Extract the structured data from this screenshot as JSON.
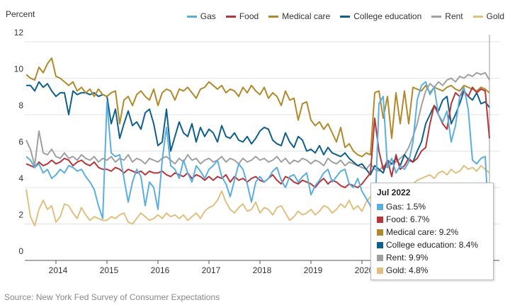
{
  "chart_data": {
    "type": "line",
    "y_axis_label": "Percent",
    "source": "Source: New York Fed Survey of Consumer Expectations",
    "categories": [
      null,
      null,
      null,
      null,
      null,
      null,
      null,
      "2014",
      null,
      null,
      null,
      null,
      null,
      null,
      null,
      null,
      null,
      null,
      null,
      "2015",
      null,
      null,
      null,
      null,
      null,
      null,
      null,
      null,
      null,
      null,
      null,
      "2016",
      null,
      null,
      null,
      null,
      null,
      null,
      null,
      null,
      null,
      null,
      null,
      "2017",
      null,
      null,
      null,
      null,
      null,
      null,
      null,
      null,
      null,
      null,
      null,
      "2018",
      null,
      null,
      null,
      null,
      null,
      null,
      null,
      null,
      null,
      null,
      null,
      "2019",
      null,
      null,
      null,
      null,
      null,
      null,
      null,
      null,
      null,
      null,
      null,
      "2020",
      null,
      null,
      null,
      null,
      null,
      null,
      null,
      null,
      null,
      null,
      null,
      "2021",
      null,
      null,
      null,
      null,
      null,
      null,
      null,
      null,
      null,
      null,
      null,
      "2022",
      null,
      null,
      null,
      null,
      null,
      null
    ],
    "ylim": [
      0,
      12
    ],
    "yticks": [
      0,
      2,
      4,
      6,
      8,
      10,
      12
    ],
    "grid": true,
    "series": [
      {
        "name": "Gas",
        "color": "#5aaee0",
        "values": [
          5.7,
          5.5,
          5.1,
          5.3,
          4.8,
          5.0,
          4.5,
          4.7,
          5.0,
          4.8,
          5.2,
          5.1,
          4.9,
          5.0,
          4.6,
          4.3,
          3.9,
          3.0,
          2.3,
          8.7,
          5.9,
          5.7,
          5.8,
          4.5,
          3.2,
          4.3,
          5.0,
          4.6,
          3.0,
          4.3,
          4.0,
          2.8,
          5.5,
          7.3,
          5.2,
          5.0,
          4.5,
          5.5,
          4.8,
          4.3,
          5.2,
          4.9,
          4.5,
          5.0,
          5.2,
          5.5,
          4.6,
          4.2,
          3.5,
          4.4,
          5.3,
          5.0,
          4.2,
          3.2,
          4.3,
          4.6,
          4.3,
          4.5,
          4.9,
          5.1,
          4.4,
          4.0,
          4.6,
          4.7,
          4.3,
          4.6,
          4.8,
          3.6,
          4.1,
          4.4,
          4.8,
          5.0,
          4.3,
          4.6,
          4.9,
          5.0,
          4.2,
          4.0,
          4.5,
          3.8,
          3.4,
          3.0,
          2.2,
          8.6,
          9.0,
          5.1,
          5.6,
          4.8,
          5.2,
          5.0,
          5.4,
          6.5,
          8.8,
          9.6,
          9.8,
          9.1,
          9.5,
          8.0,
          7.6,
          8.2,
          6.5,
          7.4,
          9.0,
          9.5,
          8.3,
          5.5,
          5.3,
          5.6,
          5.7,
          1.5
        ]
      },
      {
        "name": "Food",
        "color": "#b5363a",
        "values": [
          5.3,
          5.2,
          5.1,
          5.4,
          5.2,
          5.3,
          5.5,
          5.3,
          5.4,
          5.6,
          5.5,
          5.2,
          5.4,
          5.5,
          5.3,
          5.2,
          5.4,
          5.1,
          5.0,
          5.0,
          4.9,
          5.1,
          5.0,
          4.8,
          5.0,
          4.9,
          4.8,
          4.9,
          4.7,
          4.9,
          4.8,
          4.8,
          4.9,
          4.7,
          4.6,
          4.8,
          4.7,
          4.6,
          4.8,
          4.5,
          4.7,
          4.6,
          4.4,
          4.6,
          4.4,
          4.6,
          4.5,
          4.7,
          4.3,
          4.6,
          4.4,
          4.5,
          4.3,
          4.5,
          4.6,
          4.4,
          4.3,
          4.5,
          4.7,
          4.4,
          4.2,
          4.6,
          4.5,
          4.3,
          4.2,
          4.4,
          4.3,
          4.2,
          4.0,
          4.3,
          4.5,
          4.2,
          4.4,
          4.3,
          4.1,
          4.0,
          4.2,
          4.1,
          4.0,
          4.2,
          4.5,
          4.8,
          7.8,
          6.0,
          5.0,
          5.5,
          4.6,
          5.8,
          5.0,
          5.2,
          5.6,
          5.4,
          5.6,
          6.0,
          6.2,
          7.5,
          8.5,
          8.0,
          7.5,
          7.2,
          8.6,
          9.2,
          9.0,
          9.3,
          9.0,
          9.5,
          9.2,
          9.4,
          9.3,
          6.7
        ]
      },
      {
        "name": "Medical care",
        "color": "#b08a2a",
        "values": [
          10.2,
          10.0,
          9.9,
          10.6,
          10.3,
          10.8,
          11.1,
          10.1,
          10.0,
          9.8,
          9.6,
          9.8,
          9.3,
          9.5,
          9.2,
          9.4,
          9.0,
          9.4,
          9.1,
          9.0,
          9.2,
          9.3,
          7.5,
          8.8,
          9.0,
          8.5,
          9.1,
          9.3,
          9.0,
          8.8,
          9.4,
          8.5,
          9.2,
          9.4,
          9.3,
          8.8,
          9.4,
          9.3,
          9.5,
          9.2,
          8.9,
          9.4,
          9.5,
          9.8,
          9.6,
          9.4,
          9.6,
          9.2,
          9.4,
          9.3,
          9.0,
          9.5,
          9.2,
          9.6,
          9.3,
          9.1,
          9.5,
          8.9,
          9.2,
          9.0,
          8.5,
          9.3,
          8.8,
          8.9,
          7.7,
          8.6,
          8.7,
          7.7,
          7.4,
          7.6,
          7.2,
          7.5,
          7.0,
          6.5,
          7.3,
          6.2,
          6.4,
          6.0,
          5.8,
          5.7,
          5.9,
          5.8,
          9.2,
          9.3,
          7.8,
          9.0,
          6.7,
          9.2,
          7.5,
          9.3,
          7.5,
          9.5,
          9.4,
          9.3,
          9.6,
          9.2,
          9.5,
          9.4,
          9.3,
          9.5,
          9.6,
          9.4,
          9.3,
          9.6,
          9.5,
          9.4,
          9.3,
          9.5,
          9.4,
          9.2
        ]
      },
      {
        "name": "College education",
        "color": "#0e5f8a",
        "values": [
          9.6,
          9.6,
          9.3,
          9.8,
          9.5,
          9.7,
          9.3,
          9.0,
          9.2,
          9.2,
          8.0,
          9.3,
          9.1,
          9.2,
          9.2,
          9.1,
          9.2,
          9.0,
          9.1,
          9.0,
          7.5,
          8.3,
          6.7,
          7.5,
          8.2,
          7.4,
          7.6,
          7.2,
          8.1,
          8.3,
          7.5,
          6.3,
          6.5,
          8.3,
          6.0,
          6.8,
          7.6,
          7.0,
          6.8,
          7.5,
          6.5,
          7.3,
          6.8,
          7.2,
          7.0,
          6.5,
          7.4,
          6.8,
          6.7,
          7.0,
          6.6,
          6.5,
          6.8,
          6.4,
          6.7,
          7.1,
          7.3,
          7.2,
          6.6,
          6.4,
          6.3,
          7.0,
          6.5,
          6.2,
          6.8,
          6.6,
          6.0,
          6.1,
          5.9,
          6.3,
          5.8,
          6.2,
          5.9,
          5.8,
          5.7,
          5.9,
          5.6,
          5.4,
          5.2,
          5.3,
          5.0,
          4.7,
          5.2,
          5.0,
          4.8,
          5.5,
          5.3,
          5.6,
          5.2,
          5.8,
          5.5,
          5.4,
          6.0,
          6.5,
          7.5,
          8.0,
          8.5,
          8.2,
          8.8,
          9.0,
          7.5,
          8.0,
          8.6,
          9.3,
          9.0,
          8.8,
          9.2,
          8.6,
          8.7,
          8.4
        ]
      },
      {
        "name": "Rent",
        "color": "#a0a0a0",
        "values": [
          6.6,
          6.1,
          5.2,
          7.1,
          5.9,
          5.8,
          6.1,
          5.7,
          5.6,
          5.9,
          5.6,
          5.7,
          5.5,
          5.8,
          5.6,
          5.5,
          5.7,
          5.4,
          5.6,
          5.5,
          5.7,
          5.4,
          5.6,
          5.5,
          5.8,
          5.4,
          5.6,
          5.5,
          5.3,
          5.6,
          5.5,
          5.4,
          5.6,
          5.7,
          5.5,
          5.3,
          5.6,
          5.4,
          5.8,
          5.5,
          5.6,
          5.3,
          5.5,
          5.6,
          5.4,
          5.5,
          5.7,
          5.4,
          5.6,
          5.5,
          5.3,
          5.6,
          5.4,
          5.5,
          5.7,
          5.5,
          5.6,
          5.4,
          5.5,
          5.7,
          5.4,
          5.6,
          5.3,
          5.5,
          5.4,
          5.6,
          5.5,
          5.3,
          5.5,
          5.4,
          5.2,
          5.6,
          5.4,
          5.3,
          5.5,
          5.2,
          5.4,
          5.3,
          5.2,
          5.1,
          5.0,
          5.3,
          5.0,
          4.9,
          5.2,
          5.1,
          5.3,
          5.4,
          5.6,
          5.8,
          6.2,
          6.8,
          7.5,
          8.5,
          9.3,
          9.7,
          9.5,
          9.8,
          9.6,
          9.9,
          10.0,
          9.8,
          10.1,
          10.0,
          10.2,
          10.1,
          10.3,
          10.2,
          10.3,
          9.9
        ]
      },
      {
        "name": "Gold",
        "color": "#e0c080",
        "values": [
          3.9,
          2.4,
          1.9,
          2.8,
          3.3,
          2.8,
          3.0,
          2.1,
          2.4,
          3.1,
          3.0,
          2.6,
          2.3,
          2.9,
          2.5,
          2.2,
          2.4,
          2.3,
          2.2,
          2.2,
          2.4,
          2.3,
          2.5,
          2.6,
          2.1,
          2.0,
          2.3,
          2.6,
          2.4,
          2.2,
          2.3,
          2.5,
          2.3,
          2.6,
          2.4,
          2.5,
          2.3,
          2.5,
          2.2,
          2.4,
          2.6,
          2.3,
          2.7,
          2.9,
          3.0,
          3.3,
          3.8,
          3.2,
          2.8,
          2.6,
          2.9,
          3.1,
          2.7,
          2.8,
          3.2,
          2.6,
          2.9,
          2.8,
          2.5,
          2.9,
          3.0,
          2.6,
          2.2,
          2.4,
          2.7,
          2.5,
          2.6,
          2.8,
          2.5,
          2.7,
          3.0,
          2.9,
          2.6,
          2.8,
          3.1,
          2.9,
          3.3,
          2.8,
          3.0,
          2.7,
          3.2,
          3.5,
          3.0,
          3.3,
          3.6,
          3.2,
          3.6,
          3.5,
          4.0,
          3.8,
          4.1,
          4.2,
          4.4,
          4.5,
          4.6,
          4.7,
          4.5,
          4.8,
          4.9,
          4.7,
          5.0,
          4.8,
          4.9,
          5.2,
          5.0,
          5.1,
          4.9,
          5.2,
          5.0,
          4.8
        ]
      }
    ],
    "tooltip": {
      "title": "Jul 2022",
      "items": [
        "Gas: 1.5%",
        "Food: 6.7%",
        "Medical care: 9.2%",
        "College education: 8.4%",
        "Rent: 9.9%",
        "Gold: 4.8%"
      ]
    }
  }
}
